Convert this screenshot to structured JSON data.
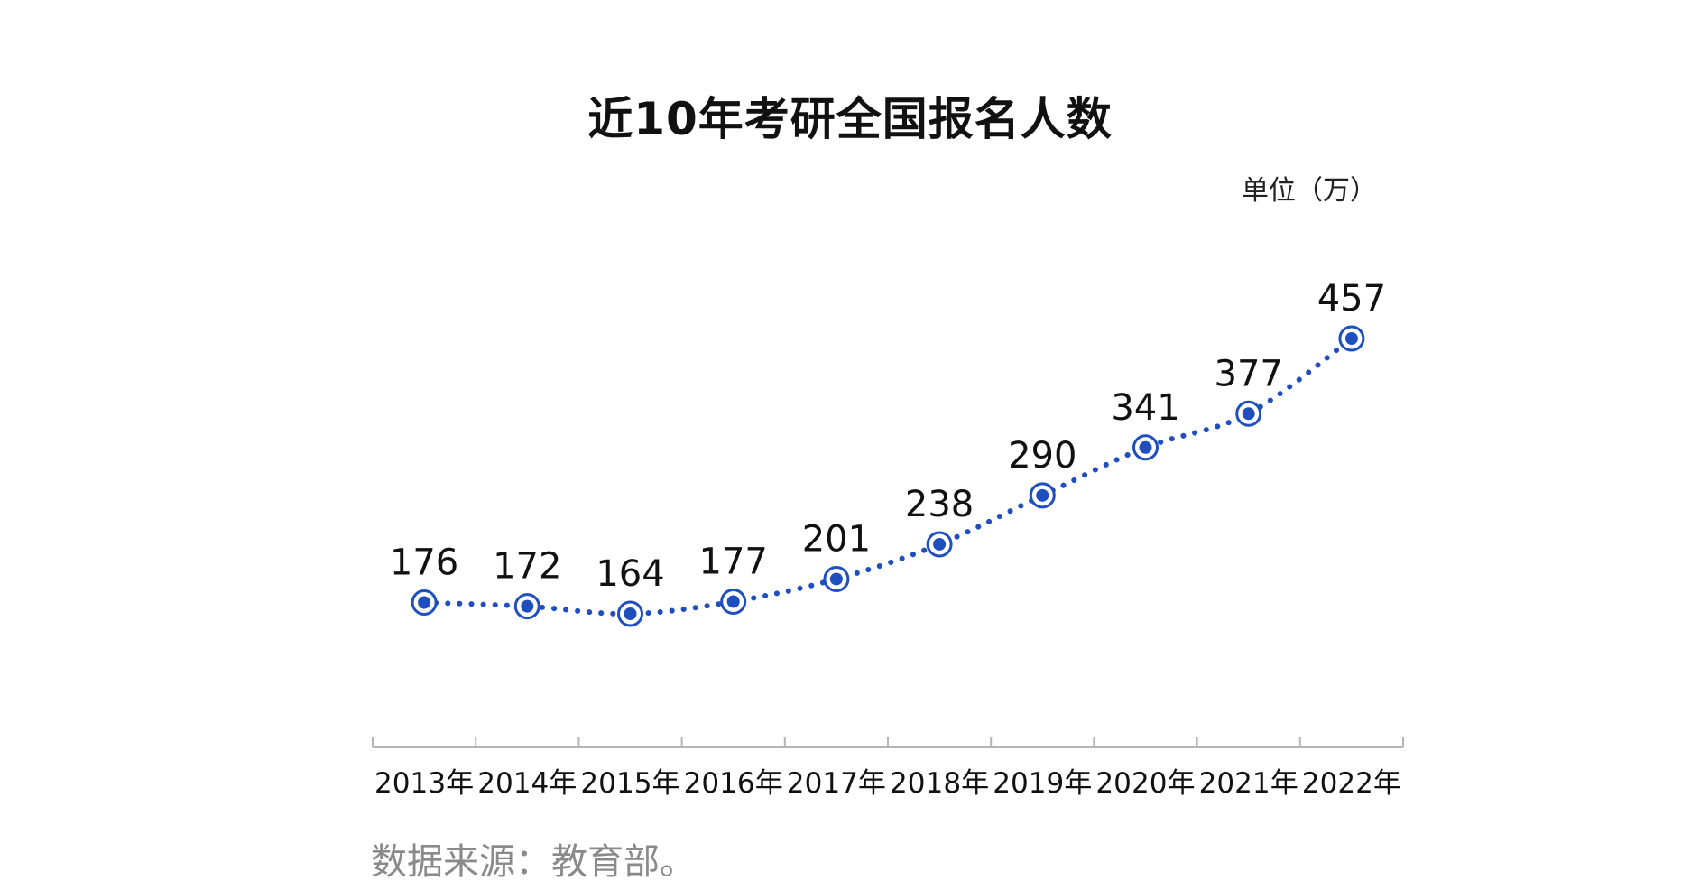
{
  "colors": {
    "series": "#1f4fbf",
    "marker_fill": "#1f4fbf",
    "marker_ring": "#1f4fbf",
    "axis": "#b5b5b5",
    "text": "#111111",
    "source_text": "#8a8a8a"
  },
  "unit_label": "单位（万）",
  "source_note": "数据来源：教育部。",
  "chart_data": {
    "type": "line",
    "title": "近10年考研全国报名人数",
    "xlabel": "",
    "ylabel": "",
    "categories": [
      "2013年",
      "2014年",
      "2015年",
      "2016年",
      "2017年",
      "2018年",
      "2019年",
      "2020年",
      "2021年",
      "2022年"
    ],
    "series": [
      {
        "values": [
          176,
          172,
          164,
          177,
          201,
          238,
          290,
          341,
          377,
          457
        ],
        "line_style": "dotted",
        "marker": "ringed-dot"
      }
    ],
    "data_labels": [
      "176",
      "172",
      "164",
      "177",
      "201",
      "238",
      "290",
      "341",
      "377",
      "457"
    ],
    "grid": false,
    "show_y_axis": false,
    "legend": "none"
  }
}
